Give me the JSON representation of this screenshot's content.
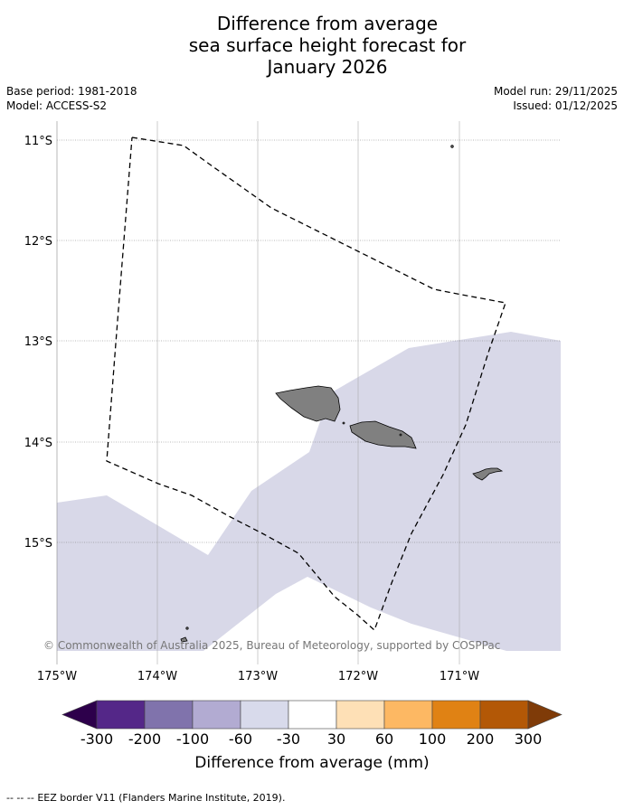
{
  "title": {
    "line1": "Difference from average",
    "line2": "sea surface height forecast for",
    "line3": "January 2026"
  },
  "meta": {
    "base_period": "Base period: 1981-2018",
    "model": "Model: ACCESS-S2",
    "model_run": "Model run: 29/11/2025",
    "issued": "Issued: 01/12/2025"
  },
  "map": {
    "lat_labels": [
      "11°S",
      "12°S",
      "13°S",
      "14°S",
      "15°S"
    ],
    "lon_labels": [
      "175°W",
      "174°W",
      "173°W",
      "172°W",
      "171°W"
    ],
    "copyright": "© Commonwealth of Australia 2025, Bureau of Meteorology, supported by COSPPac",
    "colors": {
      "land": "#808080",
      "anomaly_minus30_to_minus60": "#d8d8e8",
      "eez_border": "#000000"
    }
  },
  "colorbar": {
    "title": "Difference from average (mm)",
    "tick_labels": [
      "-300",
      "-200",
      "-100",
      "-60",
      "-30",
      "30",
      "60",
      "100",
      "200",
      "300"
    ],
    "colors": [
      "#2d004b",
      "#542788",
      "#8073ac",
      "#b2abd2",
      "#d8daeb",
      "#ffffff",
      "#fee0b6",
      "#fdb863",
      "#e08214",
      "#b35806",
      "#7f3b08"
    ]
  },
  "footer": {
    "legend_symbol": "--  --  --",
    "legend_text": "EEZ border V11 (Flanders Marine Institute, 2019)."
  }
}
